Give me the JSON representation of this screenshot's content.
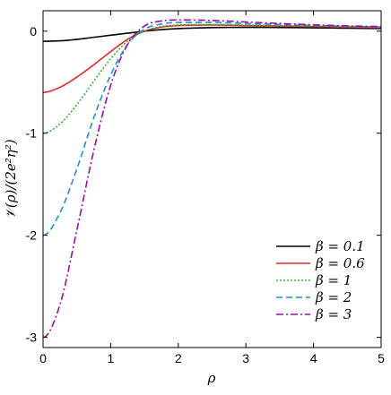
{
  "chart_data": {
    "type": "line",
    "xlabel": "ρ",
    "ylabel": "𝒱(ρ)/(2e²η²)",
    "xlim": [
      0,
      5
    ],
    "ylim": [
      -3.1,
      0.2
    ],
    "xticks": [
      0,
      1,
      2,
      3,
      4,
      5
    ],
    "yticks": [
      0,
      -1,
      -2,
      -3
    ],
    "xtick_labels": [
      "0",
      "1",
      "2",
      "3",
      "4",
      "5"
    ],
    "ytick_labels": [
      "0",
      "-1",
      "-2",
      "-3"
    ],
    "grid": false,
    "legend_position": "bottom-right",
    "series": [
      {
        "name": "β = 0.1",
        "color": "#000000",
        "dash": "solid",
        "x": [
          0,
          0.25,
          0.5,
          0.75,
          1,
          1.25,
          1.5,
          1.75,
          2,
          2.5,
          3,
          3.5,
          4,
          4.5,
          5
        ],
        "y": [
          -0.1,
          -0.095,
          -0.08,
          -0.06,
          -0.04,
          -0.02,
          0.0,
          0.015,
          0.025,
          0.035,
          0.037,
          0.036,
          0.033,
          0.029,
          0.026
        ]
      },
      {
        "name": "β = 0.6",
        "color": "#e8262b",
        "dash": "solid",
        "x": [
          0,
          0.25,
          0.5,
          0.75,
          1,
          1.25,
          1.5,
          1.75,
          2,
          2.5,
          3,
          3.5,
          4,
          4.5,
          5
        ],
        "y": [
          -0.6,
          -0.55,
          -0.45,
          -0.33,
          -0.2,
          -0.08,
          0.0,
          0.04,
          0.055,
          0.06,
          0.055,
          0.05,
          0.045,
          0.04,
          0.035
        ]
      },
      {
        "name": "β = 1",
        "color": "#2db82d",
        "dash": "dotted",
        "x": [
          0,
          0.25,
          0.5,
          0.75,
          1,
          1.25,
          1.5,
          1.75,
          2,
          2.5,
          3,
          3.5,
          4,
          4.5,
          5
        ],
        "y": [
          -1.0,
          -0.91,
          -0.72,
          -0.49,
          -0.27,
          -0.1,
          0.0,
          0.045,
          0.06,
          0.065,
          0.06,
          0.055,
          0.05,
          0.045,
          0.04
        ]
      },
      {
        "name": "β = 2",
        "color": "#1f8fd6",
        "dash": "dashed",
        "x": [
          0,
          0.25,
          0.5,
          0.75,
          1,
          1.25,
          1.5,
          1.75,
          2,
          2.5,
          3,
          3.5,
          4,
          4.5,
          5
        ],
        "y": [
          -2.0,
          -1.78,
          -1.35,
          -0.85,
          -0.43,
          -0.13,
          0.02,
          0.07,
          0.085,
          0.085,
          0.075,
          0.065,
          0.055,
          0.047,
          0.04
        ]
      },
      {
        "name": "β = 3",
        "color": "#a10aa1",
        "dash": "dashdot",
        "x": [
          0,
          0.25,
          0.5,
          0.75,
          1,
          1.25,
          1.5,
          1.75,
          2,
          2.5,
          3,
          3.5,
          4,
          4.5,
          5
        ],
        "y": [
          -3.0,
          -2.68,
          -1.95,
          -1.17,
          -0.53,
          -0.13,
          0.05,
          0.1,
          0.11,
          0.105,
          0.09,
          0.075,
          0.062,
          0.052,
          0.045
        ]
      }
    ]
  }
}
